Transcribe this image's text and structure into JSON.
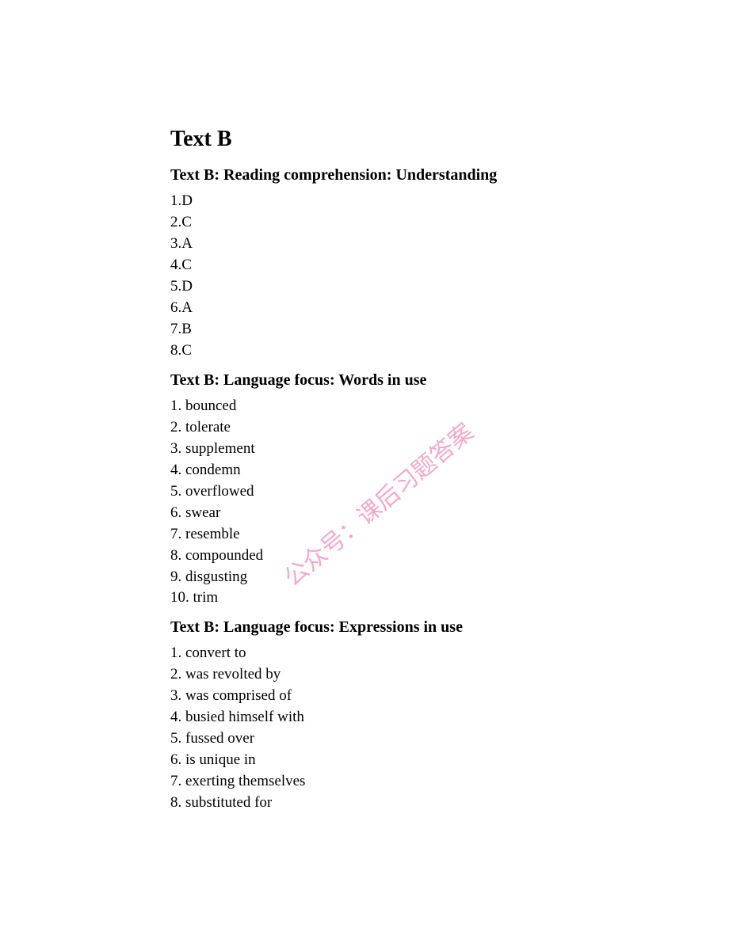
{
  "main_title": "Text B",
  "sections": [
    {
      "title": "Text B: Reading comprehension: Understanding",
      "items": [
        "1.D",
        "2.C",
        "3.A",
        "4.C",
        "5.D",
        "6.A",
        "7.B",
        "8.C"
      ]
    },
    {
      "title": "Text B: Language focus: Words in use",
      "items": [
        "1. bounced",
        "2. tolerate",
        "3. supplement",
        "4. condemn",
        "5. overflowed",
        "6. swear",
        "7. resemble",
        "8. compounded",
        "9. disgusting",
        "10. trim"
      ]
    },
    {
      "title": "Text B: Language focus: Expressions in use",
      "items": [
        "1. convert to",
        "2. was revolted by",
        "3. was comprised of",
        "4. busied himself with",
        "5. fussed over",
        "6. is unique in",
        "7. exerting themselves",
        "8. substituted for"
      ]
    }
  ],
  "watermark": {
    "text": "公众号：课后习题答案",
    "color": "#f5a8c8",
    "rotation": -40,
    "fontsize": 30
  },
  "styling": {
    "background_color": "#ffffff",
    "text_color": "#000000",
    "main_title_fontsize": 28,
    "section_title_fontsize": 20,
    "body_fontsize": 19,
    "font_family": "Times New Roman"
  }
}
